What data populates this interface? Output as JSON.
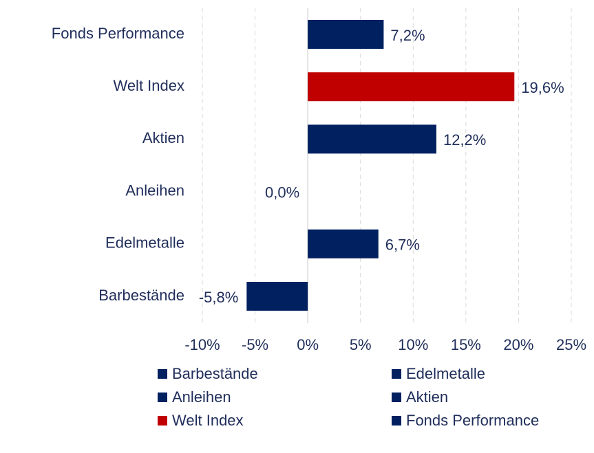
{
  "chart_data": {
    "type": "barh",
    "categories": [
      "Fonds Performance",
      "Welt Index",
      "Aktien",
      "Anleihen",
      "Edelmetalle",
      "Barbestände"
    ],
    "values": [
      7.2,
      19.6,
      12.2,
      0.0,
      6.7,
      -5.8
    ],
    "value_labels": [
      "7,2%",
      "19,6%",
      "12,2%",
      "0,0%",
      "6,7%",
      "-5,8%"
    ],
    "colors": [
      "#002060",
      "#c00000",
      "#002060",
      "#002060",
      "#002060",
      "#002060"
    ],
    "xlim": [
      -10,
      25
    ],
    "xticks": [
      {
        "value": -10,
        "label": "-10%"
      },
      {
        "value": -5,
        "label": "-5%"
      },
      {
        "value": 0,
        "label": "0%"
      },
      {
        "value": 5,
        "label": "5%"
      },
      {
        "value": 10,
        "label": "10%"
      },
      {
        "value": 15,
        "label": "15%"
      },
      {
        "value": 20,
        "label": "20%"
      },
      {
        "value": 25,
        "label": "25%"
      }
    ],
    "grid": true,
    "legend": "bottom"
  }
}
